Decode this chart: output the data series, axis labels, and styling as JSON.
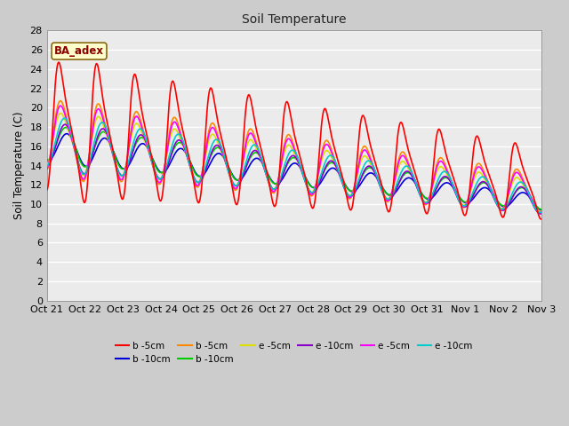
{
  "title": "Soil Temperature",
  "ylabel": "Soil Temperature (C)",
  "ylim": [
    0,
    28
  ],
  "yticks": [
    0,
    2,
    4,
    6,
    8,
    10,
    12,
    14,
    16,
    18,
    20,
    22,
    24,
    26,
    28
  ],
  "xtick_labels": [
    "Oct 21",
    "Oct 22",
    "Oct 23",
    "Oct 24",
    "Oct 25",
    "Oct 26",
    "Oct 27",
    "Oct 28",
    "Oct 29",
    "Oct 30",
    "Oct 31",
    "Nov 1",
    "Nov 2",
    "Nov 3"
  ],
  "annotation": "BA_adex",
  "fig_bg": "#cccccc",
  "plot_bg": "#ebebeb",
  "grid_color": "#ffffff",
  "series": [
    {
      "label": "b -5cm",
      "color": "#ff0000",
      "lw": 1.2,
      "zorder": 10
    },
    {
      "label": "b -10cm",
      "color": "#0000dd",
      "lw": 1.2,
      "zorder": 5
    },
    {
      "label": "b -5cm",
      "color": "#ff8800",
      "lw": 1.2,
      "zorder": 5
    },
    {
      "label": "b -10cm",
      "color": "#00cc00",
      "lw": 1.2,
      "zorder": 5
    },
    {
      "label": "e -5cm",
      "color": "#dddd00",
      "lw": 1.2,
      "zorder": 5
    },
    {
      "label": "e -10cm",
      "color": "#8800cc",
      "lw": 1.2,
      "zorder": 5
    },
    {
      "label": "e -5cm",
      "color": "#ff00ff",
      "lw": 1.2,
      "zorder": 5
    },
    {
      "label": "e -10cm",
      "color": "#00cccc",
      "lw": 1.2,
      "zorder": 5
    }
  ]
}
